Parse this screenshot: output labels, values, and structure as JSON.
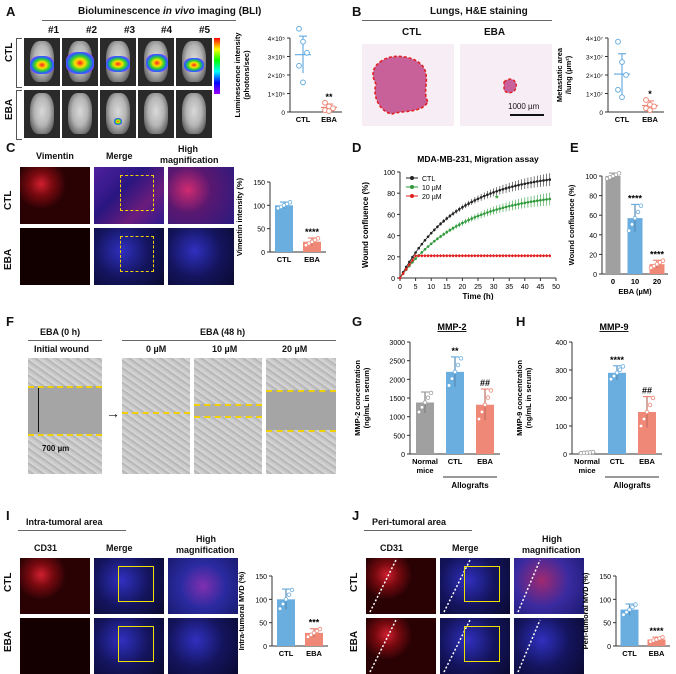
{
  "panels": {
    "A": {
      "label": "A",
      "title": "Bioluminescence in vivo imaging (BLI)",
      "title_pre": "Bioluminescence ",
      "title_italic": "in vivo",
      "title_post": " imaging (BLI)",
      "columns": [
        "#1",
        "#2",
        "#3",
        "#4",
        "#5"
      ],
      "rows": [
        "CTL",
        "EBA"
      ],
      "chart_data": {
        "type": "scatter",
        "title": "",
        "ylabel": "Luminescence intensity (photons/sec)",
        "ylabel_line1": "Luminescence intensity",
        "ylabel_line2": "(photons/sec)",
        "categories": [
          "CTL",
          "EBA"
        ],
        "yticks": [
          "0",
          "1×10⁵",
          "2×10⁵",
          "3×10⁵",
          "4×10⁵"
        ],
        "ylim": [
          0,
          400000
        ],
        "mean": [
          310000,
          25000
        ],
        "sd": [
          100000,
          18000
        ],
        "points": [
          [
            450000,
            380000,
            320000,
            250000,
            160000
          ],
          [
            50000,
            30000,
            20000,
            10000,
            5000
          ]
        ],
        "significance": "**",
        "colors": [
          "#6aaee0",
          "#f08878"
        ]
      }
    },
    "B": {
      "label": "B",
      "title": "Lungs, H&E staining",
      "columns": [
        "CTL",
        "EBA"
      ],
      "scale_bar": "1000 µm",
      "chart_data": {
        "type": "scatter",
        "ylabel": "Metastatic area /lung (µm²)",
        "ylabel_line1": "Metastatic area",
        "ylabel_line2": "/lung (µm²)",
        "categories": [
          "CTL",
          "EBA"
        ],
        "yticks": [
          "0",
          "1×10⁷",
          "2×10⁷",
          "3×10⁷",
          "4×10⁷"
        ],
        "ylim": [
          0,
          40000000
        ],
        "mean": [
          20500000,
          3500000
        ],
        "sd": [
          11000000,
          2500000
        ],
        "points": [
          [
            38000000,
            27000000,
            20000000,
            12000000,
            8000000
          ],
          [
            6500000,
            4000000,
            3000000,
            2000000,
            1000000
          ]
        ],
        "significance": "*",
        "colors": [
          "#6aaee0",
          "#f08878"
        ]
      }
    },
    "C": {
      "label": "C",
      "columns": [
        "Vimentin",
        "Merge",
        "High magnification"
      ],
      "col3_line1": "High",
      "col3_line2": "magnification",
      "rows": [
        "CTL",
        "EBA"
      ],
      "chart_data": {
        "type": "bar",
        "ylabel": "Vimentin intensity (%)",
        "categories": [
          "CTL",
          "EBA"
        ],
        "values": [
          100,
          22
        ],
        "sd": [
          7,
          8
        ],
        "yticks": [
          "0",
          "50",
          "100",
          "150"
        ],
        "ylim": [
          0,
          150
        ],
        "significance": "****",
        "colors": [
          "#6aaee0",
          "#f08878"
        ]
      }
    },
    "D": {
      "label": "D",
      "chart_data": {
        "type": "line",
        "title": "MDA-MB-231, Migration assay",
        "xlabel": "Time (h)",
        "ylabel": "Wound confluence (%)",
        "xlim": [
          0,
          50
        ],
        "ylim": [
          0,
          100
        ],
        "xticks": [
          "0",
          "5",
          "10",
          "15",
          "20",
          "25",
          "30",
          "35",
          "40",
          "45",
          "50"
        ],
        "yticks": [
          "0",
          "20",
          "40",
          "60",
          "80",
          "100"
        ],
        "series": [
          {
            "name": "CTL",
            "color": "#222222",
            "max": 100,
            "rate": 0.055
          },
          {
            "name": "10 µM",
            "color": "#2e9a3a",
            "max": 82,
            "rate": 0.05
          },
          {
            "name": "20 µM",
            "color": "#e02020",
            "max": 21,
            "rate": 0.6
          }
        ],
        "annotation": "*"
      }
    },
    "E": {
      "label": "E",
      "chart_data": {
        "type": "bar",
        "ylabel": "Wound confluence (%)",
        "xlabel": "EBA (µM)",
        "categories": [
          "0",
          "10",
          "20"
        ],
        "values": [
          100,
          57,
          10
        ],
        "sd": [
          3,
          14,
          4
        ],
        "yticks": [
          "0",
          "20",
          "40",
          "60",
          "80",
          "100"
        ],
        "ylim": [
          0,
          100
        ],
        "significance": [
          "",
          "****",
          "****"
        ],
        "colors": [
          "#a0a0a0",
          "#6aaee0",
          "#f08878"
        ]
      }
    },
    "F": {
      "label": "F",
      "left_header": "EBA (0 h)",
      "left_sub": "Initial wound",
      "right_header": "EBA (48 h)",
      "doses": [
        "0 µM",
        "10 µM",
        "20 µM"
      ],
      "width_label": "700 µm"
    },
    "G": {
      "label": "G",
      "chart_data": {
        "type": "bar",
        "title": "MMP-2",
        "ylabel": "MMP-2 concentration (ng/mL in serum)",
        "ylabel_line1": "MMP-2 concentration",
        "ylabel_line2": "(ng/mL in serum)",
        "categories": [
          "Normal mice",
          "CTL",
          "EBA"
        ],
        "cat_line1": [
          "Normal",
          "CTL",
          "EBA"
        ],
        "cat_line2": [
          "mice",
          "",
          ""
        ],
        "group_label": "Allografts",
        "values": [
          1380,
          2200,
          1320
        ],
        "sd": [
          280,
          400,
          420
        ],
        "yticks": [
          "0",
          "500",
          "1000",
          "1500",
          "2000",
          "2500",
          "3000"
        ],
        "ylim": [
          0,
          3000
        ],
        "significance": [
          "",
          "**",
          "##"
        ],
        "colors": [
          "#a0a0a0",
          "#6aaee0",
          "#f08878"
        ]
      }
    },
    "H": {
      "label": "H",
      "chart_data": {
        "type": "bar",
        "title": "MMP-9",
        "ylabel": "MMP-9 concentration (ng/mL in serum)",
        "ylabel_line1": "MMP-9 concentration",
        "ylabel_line2": "(ng/mL in serum)",
        "categories": [
          "Normal mice",
          "CTL",
          "EBA"
        ],
        "cat_line1": [
          "Normal",
          "CTL",
          "EBA"
        ],
        "cat_line2": [
          "mice",
          "",
          ""
        ],
        "group_label": "Allografts",
        "values": [
          5,
          290,
          150
        ],
        "sd": [
          2,
          25,
          55
        ],
        "yticks": [
          "0",
          "100",
          "200",
          "300",
          "400"
        ],
        "ylim": [
          0,
          400
        ],
        "significance": [
          "",
          "****",
          "##"
        ],
        "colors": [
          "#a0a0a0",
          "#6aaee0",
          "#f08878"
        ]
      }
    },
    "I": {
      "label": "I",
      "title": "Intra-tumoral area",
      "columns": [
        "CD31",
        "Merge",
        "High magnification"
      ],
      "col3_line1": "High",
      "col3_line2": "magnification",
      "rows": [
        "CTL",
        "EBA"
      ],
      "chart_data": {
        "type": "bar",
        "ylabel": "Intra-tumoral MVD (%)",
        "categories": [
          "CTL",
          "EBA"
        ],
        "values": [
          100,
          28
        ],
        "sd": [
          22,
          9
        ],
        "yticks": [
          "0",
          "50",
          "100",
          "150"
        ],
        "ylim": [
          0,
          150
        ],
        "significance": "***",
        "colors": [
          "#6aaee0",
          "#f08878"
        ]
      }
    },
    "J": {
      "label": "J",
      "title": "Peri-tumoral area",
      "columns": [
        "CD31",
        "Merge",
        "High magnification"
      ],
      "col3_line1": "High",
      "col3_line2": "magnification",
      "rows": [
        "CTL",
        "EBA"
      ],
      "chart_data": {
        "type": "bar",
        "ylabel": "Peri-tumoral MVD (%)",
        "categories": [
          "CTL",
          "EBA"
        ],
        "values": [
          78,
          14
        ],
        "sd": [
          12,
          5
        ],
        "yticks": [
          "0",
          "50",
          "100",
          "150"
        ],
        "ylim": [
          0,
          150
        ],
        "significance": "****",
        "colors": [
          "#6aaee0",
          "#f08878"
        ]
      }
    }
  }
}
